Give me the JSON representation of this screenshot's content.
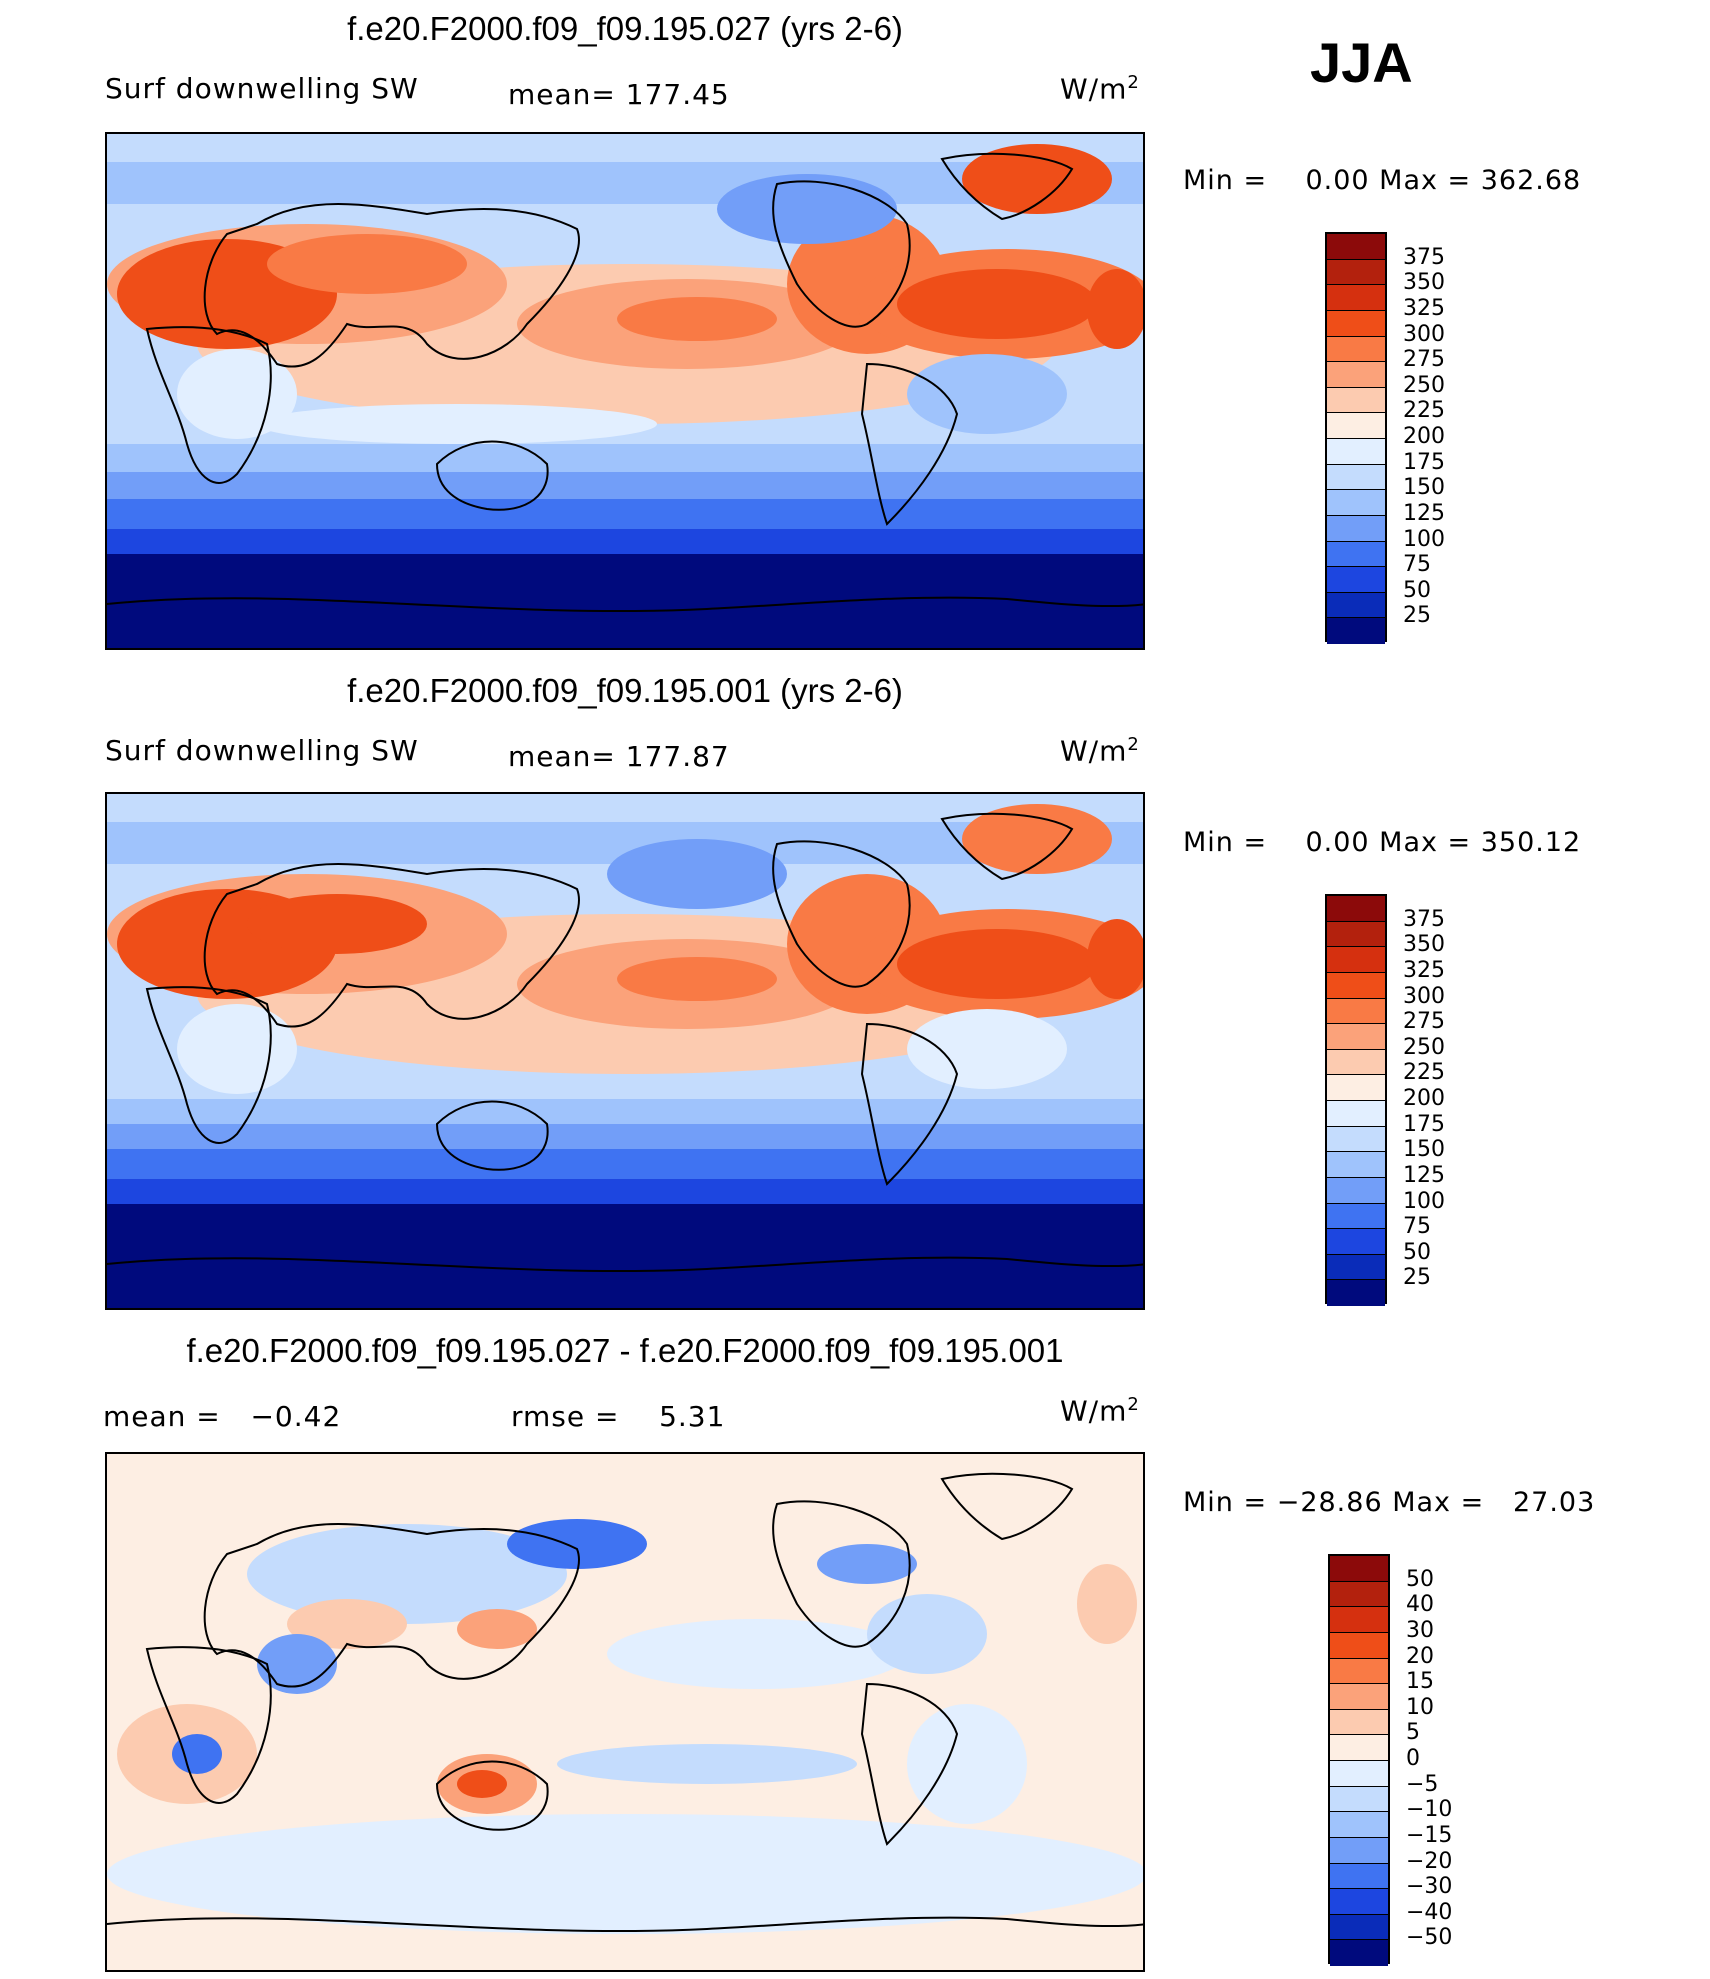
{
  "season": "JJA",
  "units": "W/m",
  "units_sup": "2",
  "panels": [
    {
      "title": "f.e20.F2000.f09_f09.195.027 (yrs 2-6)",
      "variable": "Surf downwelling SW",
      "stat": "mean= 177.45",
      "minmax": "Min =    0.00 Max = 362.68",
      "ticks": [
        "375",
        "350",
        "325",
        "300",
        "275",
        "250",
        "225",
        "200",
        "175",
        "150",
        "125",
        "100",
        "75",
        "50",
        "25"
      ],
      "colors": [
        "#8c0a0a",
        "#b3210d",
        "#d5300f",
        "#ef4e18",
        "#f97a45",
        "#fba27a",
        "#fccbb0",
        "#fdeee3",
        "#e2efff",
        "#c4dcfd",
        "#9fc3fc",
        "#729ef8",
        "#3f73f2",
        "#1d46e0",
        "#0a2cb9",
        "#000a7d"
      ]
    },
    {
      "title": "f.e20.F2000.f09_f09.195.001 (yrs 2-6)",
      "variable": "Surf downwelling SW",
      "stat": "mean= 177.87",
      "minmax": "Min =    0.00 Max = 350.12",
      "ticks": [
        "375",
        "350",
        "325",
        "300",
        "275",
        "250",
        "225",
        "200",
        "175",
        "150",
        "125",
        "100",
        "75",
        "50",
        "25"
      ],
      "colors": [
        "#8c0a0a",
        "#b3210d",
        "#d5300f",
        "#ef4e18",
        "#f97a45",
        "#fba27a",
        "#fccbb0",
        "#fdeee3",
        "#e2efff",
        "#c4dcfd",
        "#9fc3fc",
        "#729ef8",
        "#3f73f2",
        "#1d46e0",
        "#0a2cb9",
        "#000a7d"
      ]
    },
    {
      "title": "f.e20.F2000.f09_f09.195.027 - f.e20.F2000.f09_f09.195.001",
      "mean": "mean =   −0.42",
      "rmse": "rmse =    5.31",
      "minmax": "Min = −28.86 Max =   27.03",
      "ticks": [
        "50",
        "40",
        "30",
        "20",
        "15",
        "10",
        "5",
        "0",
        "−5",
        "−10",
        "−15",
        "−20",
        "−30",
        "−40",
        "−50"
      ],
      "colors": [
        "#8c0a0a",
        "#b3210d",
        "#d5300f",
        "#ef4e18",
        "#f97a45",
        "#fba27a",
        "#fccbb0",
        "#fdeee3",
        "#e2efff",
        "#c4dcfd",
        "#9fc3fc",
        "#729ef8",
        "#3f73f2",
        "#1d46e0",
        "#0a2cb9",
        "#000a7d"
      ]
    }
  ]
}
